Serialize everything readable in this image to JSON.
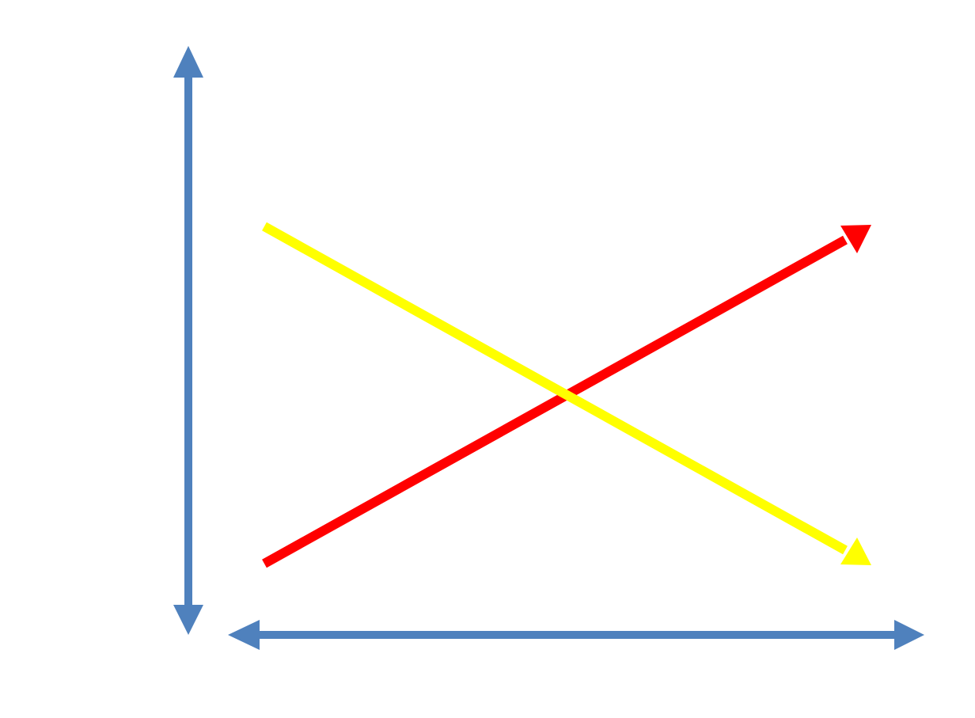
{
  "diagram": {
    "background_color": "#ffffff",
    "axis_color": "#4f81bd",
    "vertical_axis": {
      "arrowheads": "both"
    },
    "horizontal_axis": {
      "arrowheads": "both"
    },
    "lines": [
      {
        "id": "increasing",
        "color": "#ff0000",
        "trend": "increasing",
        "arrowhead": "end"
      },
      {
        "id": "decreasing",
        "color": "#ffff00",
        "trend": "decreasing",
        "arrowhead": "end"
      }
    ]
  }
}
